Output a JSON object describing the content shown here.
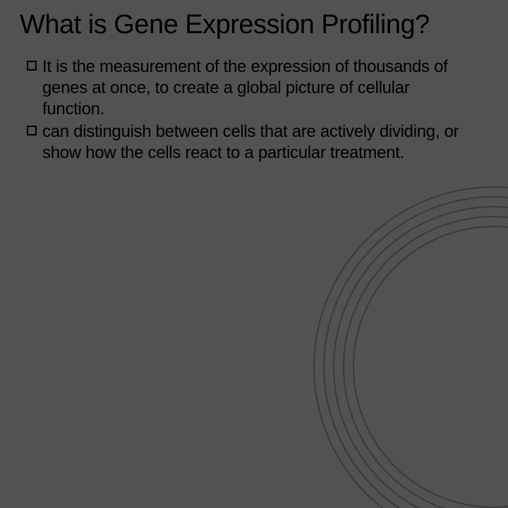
{
  "slide": {
    "title": "What is Gene Expression Profiling?",
    "bullets": [
      {
        "text": " It is the measurement of the expression of thousands of genes at once, to create a global picture of cellular function."
      },
      {
        "text": "can distinguish between cells that are actively dividing, or show how the cells react to a particular treatment."
      }
    ]
  },
  "styling": {
    "background_color": "#525252",
    "title_color": "#000000",
    "title_fontsize": 38,
    "body_color": "#000000",
    "body_fontsize": 24,
    "bullet_border_color": "#000000",
    "arc_color": "#3a3a3a"
  }
}
